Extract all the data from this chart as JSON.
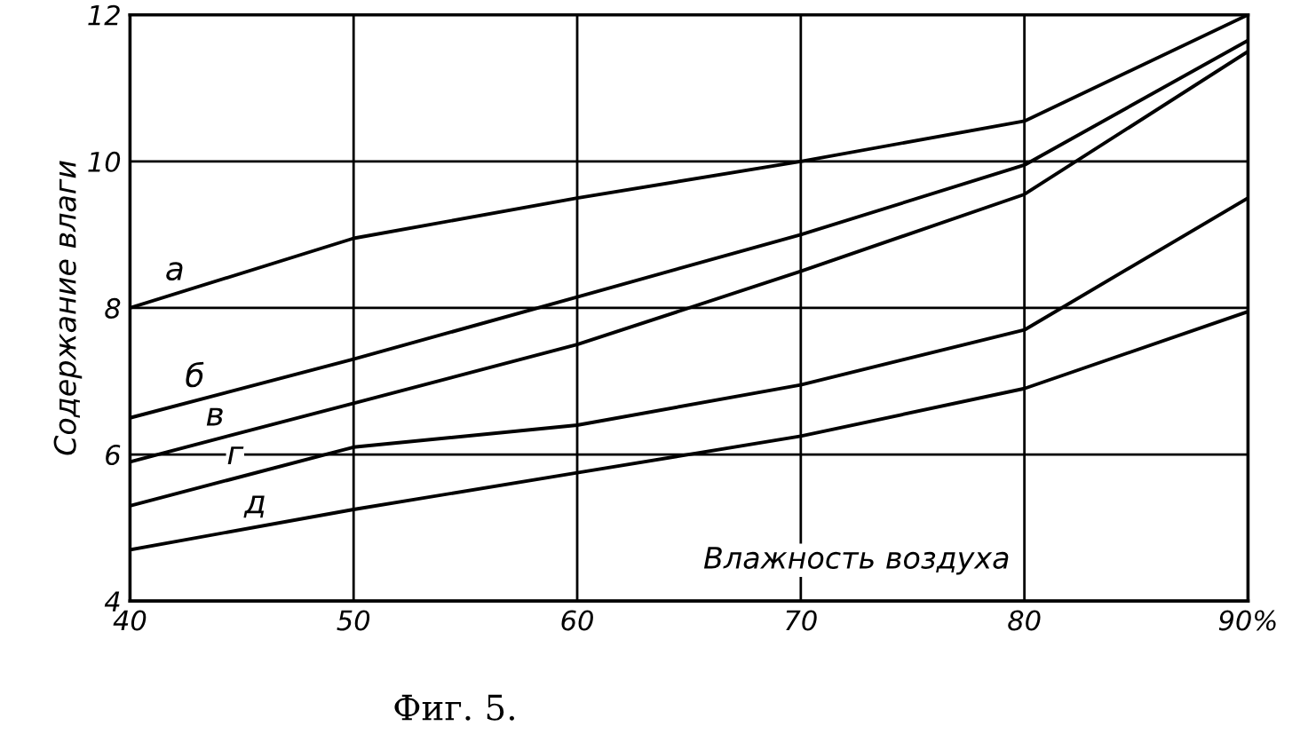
{
  "chart_data": {
    "type": "line",
    "title": "Фиг. 5.",
    "xlabel": "Влажность воздуха",
    "ylabel": "Содержание влаги",
    "x": [
      40,
      50,
      60,
      70,
      80,
      90
    ],
    "series": [
      {
        "name": "а",
        "color": "#000000",
        "values": [
          8.0,
          8.95,
          9.5,
          10.0,
          10.55,
          12.0
        ]
      },
      {
        "name": "б",
        "color": "#000000",
        "values": [
          6.5,
          7.3,
          8.15,
          9.0,
          9.95,
          11.65
        ]
      },
      {
        "name": "в",
        "color": "#000000",
        "values": [
          5.9,
          6.7,
          7.5,
          8.5,
          9.55,
          11.5
        ]
      },
      {
        "name": "г",
        "color": "#000000",
        "values": [
          5.3,
          6.1,
          6.4,
          6.95,
          7.7,
          9.5
        ]
      },
      {
        "name": "д",
        "color": "#000000",
        "values": [
          4.7,
          5.25,
          5.75,
          6.25,
          6.9,
          7.95
        ]
      }
    ],
    "xlim": [
      40,
      90
    ],
    "ylim": [
      4,
      12
    ],
    "xticks": [
      40,
      50,
      60,
      70,
      80,
      {
        "value": 90,
        "label": "90%"
      }
    ],
    "yticks": [
      4,
      6,
      8,
      10,
      12
    ],
    "grid": true,
    "legend": false,
    "marker": "none",
    "line_style": "solid"
  }
}
